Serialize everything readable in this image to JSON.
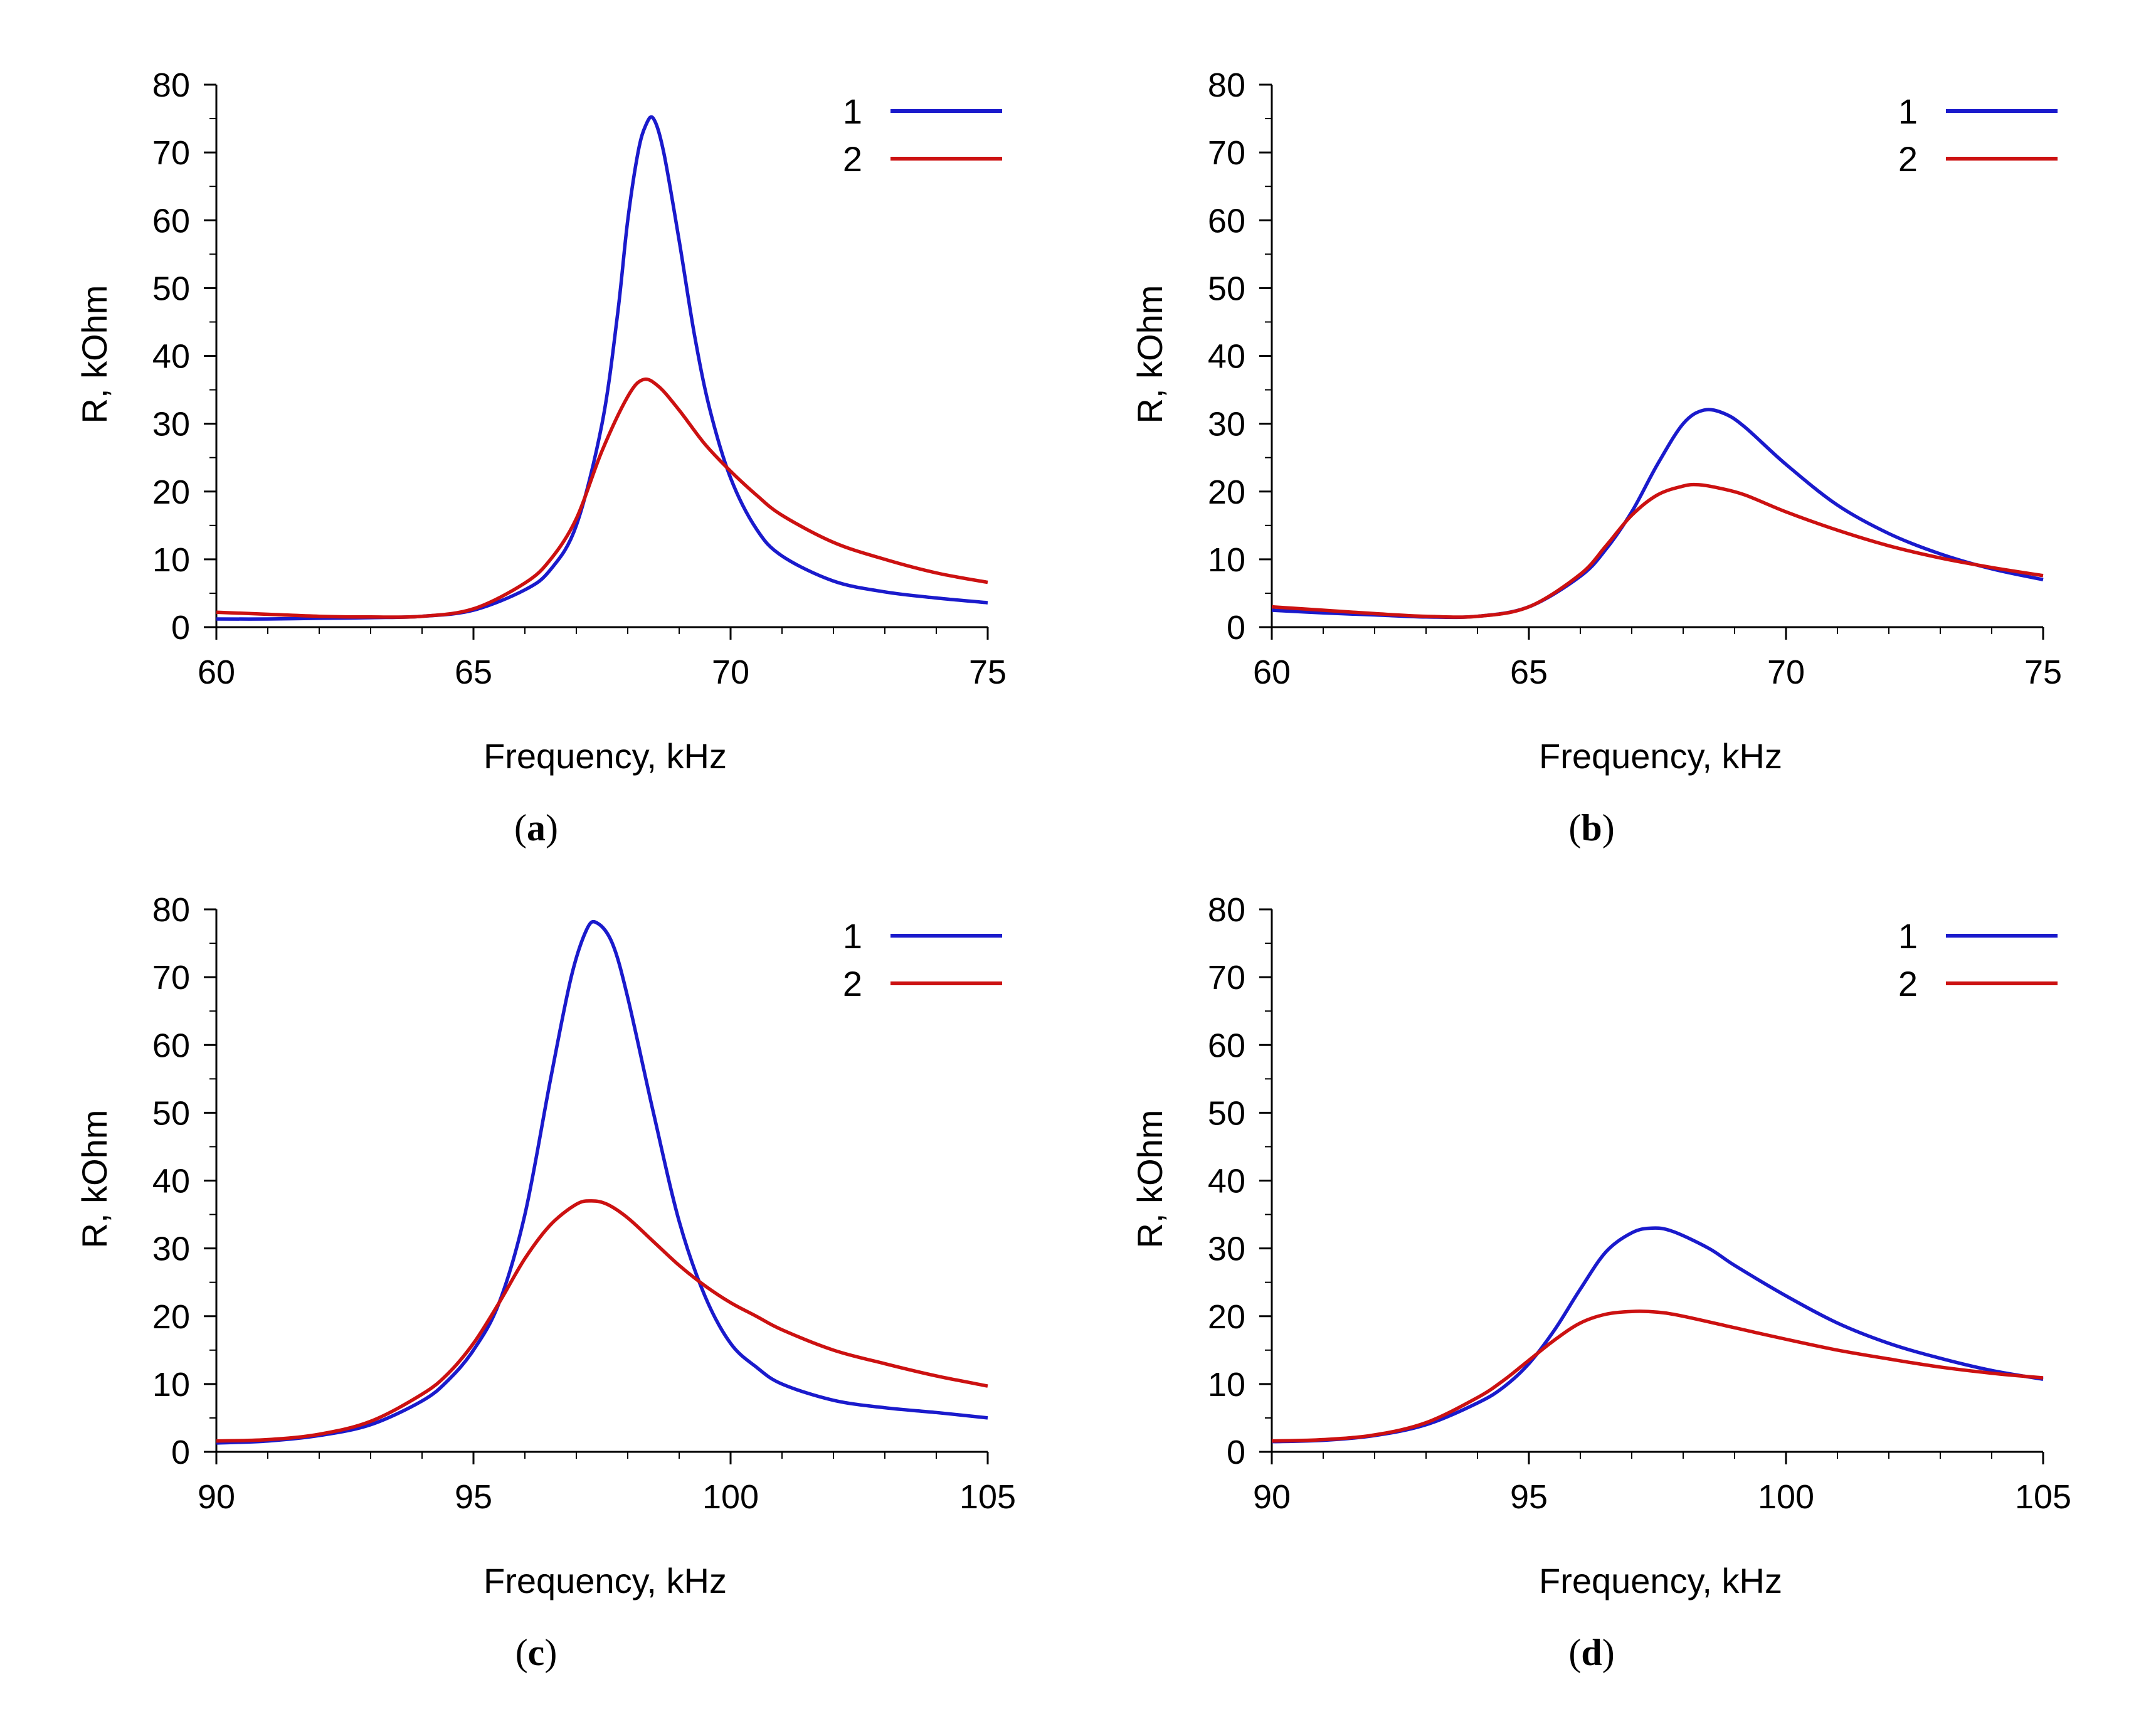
{
  "colors": {
    "series1": "#1a1acc",
    "series2": "#cc1111",
    "axis": "#000000"
  },
  "chart_data": [
    {
      "id": "a",
      "type": "line",
      "caption_letter": "a",
      "xlabel": "Frequency, kHz",
      "ylabel": "R, kOhm",
      "xlim": [
        60,
        75
      ],
      "ylim": [
        0,
        80
      ],
      "xticks": [
        60,
        65,
        70,
        75
      ],
      "xtick_labels": [
        "60",
        "65",
        "70",
        "75"
      ],
      "yticks": [
        0,
        10,
        20,
        30,
        40,
        50,
        60,
        70,
        80
      ],
      "ytick_labels": [
        "0",
        "10",
        "20",
        "30",
        "40",
        "50",
        "60",
        "70",
        "80"
      ],
      "legend": [
        "1",
        "2"
      ],
      "legend_position": "top-right",
      "series": [
        {
          "name": "1",
          "x": [
            60,
            61,
            62,
            63,
            64,
            65,
            66,
            66.5,
            67,
            67.5,
            67.8,
            68,
            68.2,
            68.35,
            68.5,
            68.7,
            69,
            69.3,
            69.6,
            70,
            70.5,
            71,
            72,
            73,
            74,
            75
          ],
          "y": [
            1.2,
            1.2,
            1.3,
            1.4,
            1.6,
            2.5,
            5.5,
            8.5,
            15,
            30,
            46,
            60,
            70,
            74,
            75,
            70,
            57,
            43,
            32,
            22,
            14.5,
            10.5,
            6.8,
            5.2,
            4.3,
            3.6
          ]
        },
        {
          "name": "2",
          "x": [
            60,
            61,
            62,
            63,
            64,
            65,
            66,
            66.5,
            67,
            67.5,
            68,
            68.3,
            68.6,
            69,
            69.5,
            70,
            70.5,
            71,
            72,
            73,
            74,
            75
          ],
          "y": [
            2.2,
            1.9,
            1.6,
            1.5,
            1.6,
            2.7,
            6.5,
            10,
            16,
            26,
            34,
            36.5,
            35.5,
            32,
            27,
            23,
            19.5,
            16.5,
            12.5,
            10,
            8,
            6.6
          ]
        }
      ]
    },
    {
      "id": "b",
      "type": "line",
      "caption_letter": "b",
      "xlabel": "Frequency, kHz",
      "ylabel": "R, kOhm",
      "xlim": [
        60,
        75
      ],
      "ylim": [
        0,
        80
      ],
      "xticks": [
        60,
        65,
        70,
        75
      ],
      "xtick_labels": [
        "60",
        "65",
        "70",
        "75"
      ],
      "yticks": [
        0,
        10,
        20,
        30,
        40,
        50,
        60,
        70,
        80
      ],
      "ytick_labels": [
        "0",
        "10",
        "20",
        "30",
        "40",
        "50",
        "60",
        "70",
        "80"
      ],
      "legend": [
        "1",
        "2"
      ],
      "legend_position": "top-right",
      "series": [
        {
          "name": "1",
          "x": [
            60,
            61,
            62,
            63,
            64,
            65,
            66,
            66.5,
            67,
            67.5,
            68,
            68.4,
            68.8,
            69.2,
            70,
            71,
            72,
            73,
            74,
            75
          ],
          "y": [
            2.5,
            2.1,
            1.8,
            1.5,
            1.6,
            3,
            7.5,
            11.5,
            17,
            24,
            30,
            32,
            31.5,
            29.5,
            24,
            18,
            13.8,
            10.8,
            8.6,
            7
          ]
        },
        {
          "name": "2",
          "x": [
            60,
            61,
            62,
            63,
            64,
            65,
            66,
            66.5,
            67,
            67.5,
            68,
            68.3,
            68.7,
            69.2,
            70,
            71,
            72,
            73,
            74,
            75
          ],
          "y": [
            3,
            2.5,
            2,
            1.6,
            1.6,
            3,
            7.8,
            12,
            16.5,
            19.5,
            20.8,
            21,
            20.5,
            19.5,
            17,
            14.3,
            12,
            10.2,
            8.8,
            7.6
          ]
        }
      ]
    },
    {
      "id": "c",
      "type": "line",
      "caption_letter": "c",
      "xlabel": "Frequency, kHz",
      "ylabel": "R, kOhm",
      "xlim": [
        90,
        105
      ],
      "ylim": [
        0,
        80
      ],
      "xticks": [
        90,
        95,
        100,
        105
      ],
      "xtick_labels": [
        "90",
        "95",
        "100",
        "105"
      ],
      "yticks": [
        0,
        10,
        20,
        30,
        40,
        50,
        60,
        70,
        80
      ],
      "ytick_labels": [
        "0",
        "10",
        "20",
        "30",
        "40",
        "50",
        "60",
        "70",
        "80"
      ],
      "legend": [
        "1",
        "2"
      ],
      "legend_position": "top-right",
      "series": [
        {
          "name": "1",
          "x": [
            90,
            91,
            92,
            93,
            94,
            94.5,
            95,
            95.5,
            96,
            96.5,
            96.9,
            97.2,
            97.4,
            97.7,
            98,
            98.5,
            99,
            99.5,
            100,
            100.5,
            101,
            102,
            103,
            104,
            105
          ],
          "y": [
            1.3,
            1.6,
            2.4,
            4,
            7.5,
            10.5,
            15,
            22,
            35,
            55,
            70,
            77,
            78,
            75,
            67,
            50,
            34,
            23,
            16,
            12.5,
            10,
            7.6,
            6.5,
            5.8,
            5
          ]
        },
        {
          "name": "2",
          "x": [
            90,
            91,
            92,
            93,
            94,
            94.5,
            95,
            95.5,
            96,
            96.5,
            97,
            97.3,
            97.6,
            98,
            98.5,
            99,
            99.5,
            100,
            100.5,
            101,
            102,
            103,
            104,
            105
          ],
          "y": [
            1.6,
            1.8,
            2.6,
            4.5,
            8.5,
            11.5,
            16,
            22,
            28.5,
            33.5,
            36.5,
            37,
            36.5,
            34.5,
            31,
            27.5,
            24.5,
            22,
            20,
            18,
            15,
            13,
            11.2,
            9.7
          ]
        }
      ]
    },
    {
      "id": "d",
      "type": "line",
      "caption_letter": "d",
      "xlabel": "Frequency, kHz",
      "ylabel": "R, kOhm",
      "xlim": [
        90,
        105
      ],
      "ylim": [
        0,
        80
      ],
      "xticks": [
        90,
        95,
        100,
        105
      ],
      "xtick_labels": [
        "90",
        "95",
        "100",
        "105"
      ],
      "yticks": [
        0,
        10,
        20,
        30,
        40,
        50,
        60,
        70,
        80
      ],
      "ytick_labels": [
        "0",
        "10",
        "20",
        "30",
        "40",
        "50",
        "60",
        "70",
        "80"
      ],
      "legend": [
        "1",
        "2"
      ],
      "legend_position": "top-right",
      "series": [
        {
          "name": "1",
          "x": [
            90,
            91,
            92,
            93,
            94,
            94.5,
            95,
            95.5,
            96,
            96.5,
            97,
            97.4,
            97.8,
            98.5,
            99,
            100,
            101,
            102,
            103,
            104,
            105
          ],
          "y": [
            1.5,
            1.7,
            2.4,
            4,
            7.2,
            9.5,
            13,
            18,
            24,
            29.5,
            32.3,
            33,
            32.5,
            30,
            27.5,
            23,
            19,
            16,
            13.8,
            12,
            10.7
          ]
        },
        {
          "name": "2",
          "x": [
            90,
            91,
            92,
            93,
            94,
            94.5,
            95,
            95.5,
            96,
            96.5,
            97,
            97.5,
            98,
            99,
            100,
            101,
            102,
            103,
            104,
            105
          ],
          "y": [
            1.6,
            1.8,
            2.5,
            4.3,
            8,
            10.5,
            13.5,
            16.5,
            19,
            20.3,
            20.7,
            20.6,
            20,
            18.3,
            16.6,
            15,
            13.7,
            12.5,
            11.6,
            10.9
          ]
        }
      ]
    }
  ]
}
